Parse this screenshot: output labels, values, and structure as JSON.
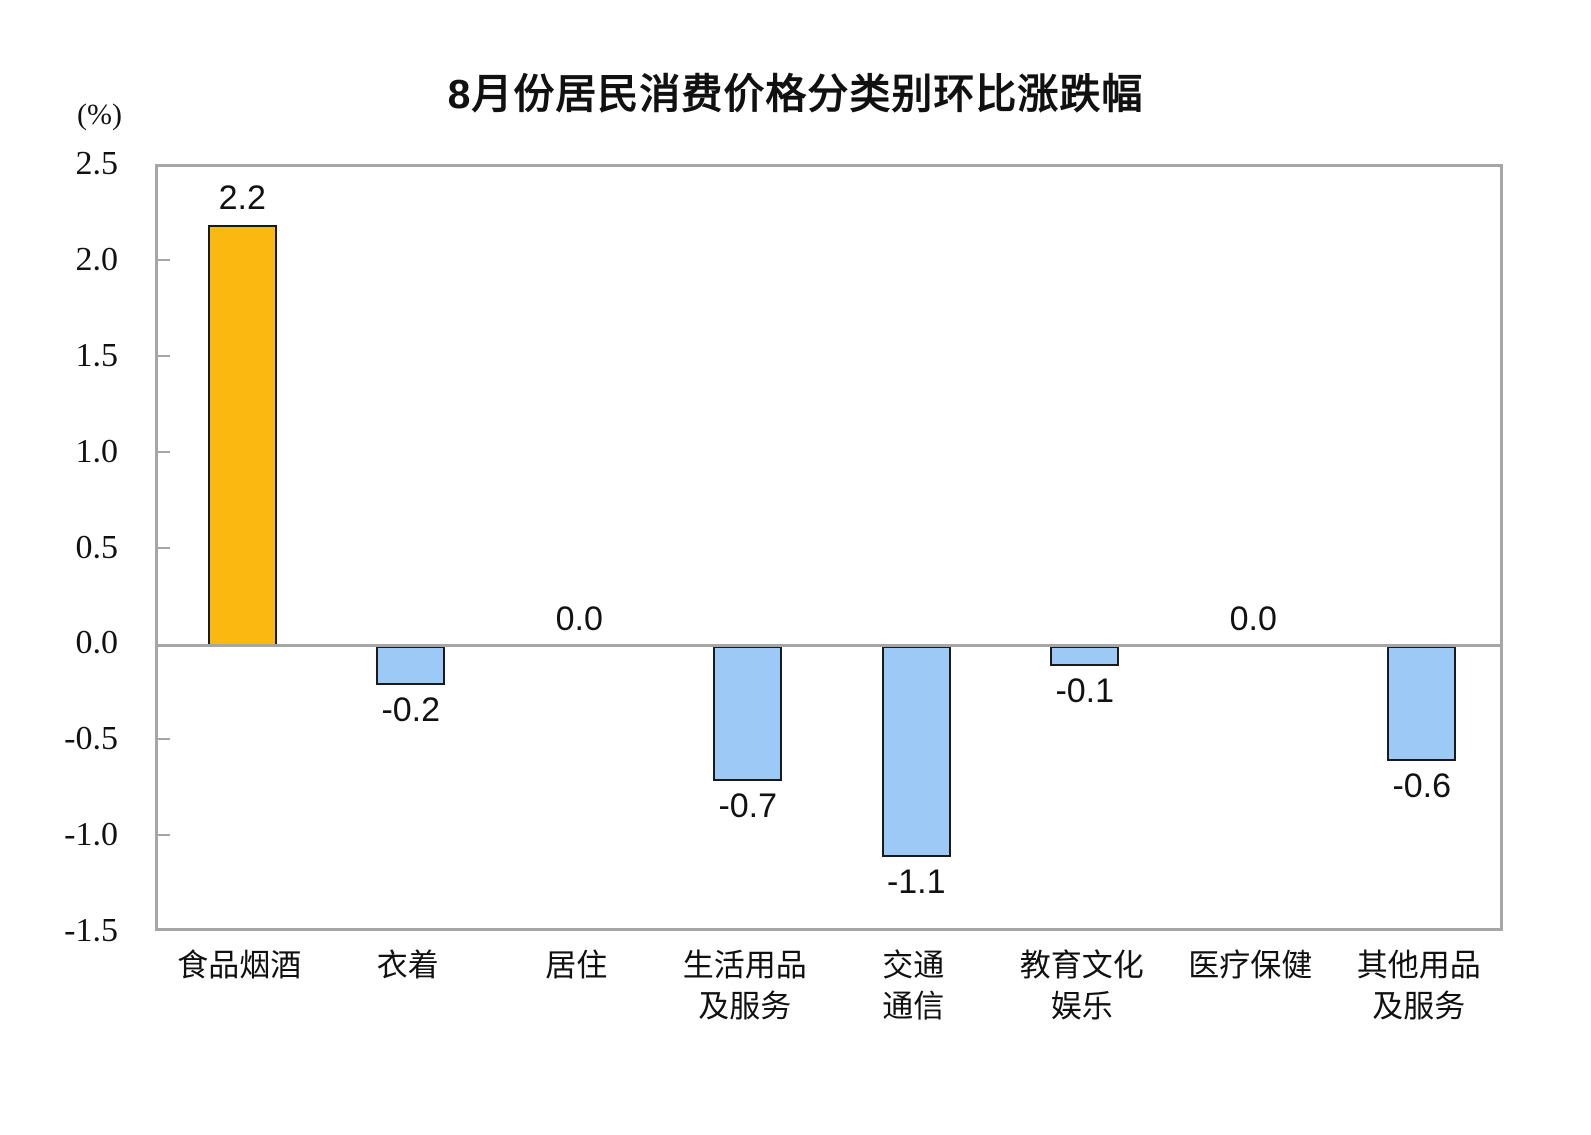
{
  "title": "8月份居民消费价格分类别环比涨跌幅",
  "y_axis_unit": "(%)",
  "chart_data": {
    "type": "bar",
    "title": "8月份居民消费价格分类别环比涨跌幅",
    "xlabel": "",
    "ylabel": "(%)",
    "categories": [
      [
        "食品烟酒"
      ],
      [
        "衣着"
      ],
      [
        "居住"
      ],
      [
        "生活用品",
        "及服务"
      ],
      [
        "交通",
        "通信"
      ],
      [
        "教育文化",
        "娱乐"
      ],
      [
        "医疗保健"
      ],
      [
        "其他用品",
        "及服务"
      ]
    ],
    "values": [
      2.2,
      -0.2,
      0.0,
      -0.7,
      -1.1,
      -0.1,
      0.0,
      -0.6
    ],
    "value_labels": [
      "2.2",
      "-0.2",
      "0.0",
      "-0.7",
      "-1.1",
      "-0.1",
      "0.0",
      "-0.6"
    ],
    "bar_colors": [
      "#FBB810",
      "#9DC9F7",
      "#9DC9F7",
      "#9DC9F7",
      "#9DC9F7",
      "#9DC9F7",
      "#9DC9F7",
      "#9DC9F7"
    ],
    "bar_border_color": "#1A1A1A",
    "axis_color": "#A6A6A6",
    "ylim": [
      -1.5,
      2.5
    ],
    "ytick_step": 0.5,
    "yticks": [
      "2.5",
      "2.0",
      "1.5",
      "1.0",
      "0.5",
      "0.0",
      "-0.5",
      "-1.0",
      "-1.5"
    ],
    "grid": false,
    "legend": "none"
  }
}
